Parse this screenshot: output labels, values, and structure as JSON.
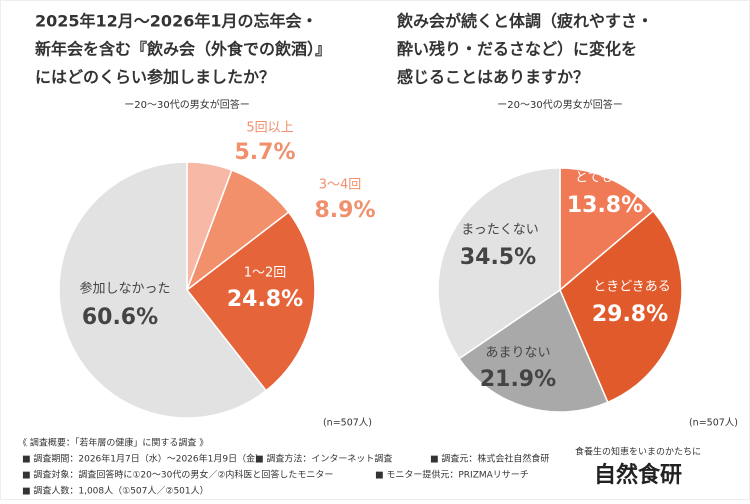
{
  "chart_data": [
    {
      "type": "pie",
      "title_lines": [
        "2025年12月〜2026年1月の忘年会・",
        "新年会を含む『飲み会（外食での飲酒）』",
        "にはどのくらい参加しましたか？"
      ],
      "subtitle": "ー20～30代の男女が回答ー",
      "note": "(n=507人)",
      "categories": [
        "5回以上",
        "3～4回",
        "1～2回",
        "参加しなかった"
      ],
      "values": [
        5.7,
        8.9,
        24.8,
        60.6
      ],
      "value_labels": [
        "5.7%",
        "8.9%",
        "24.8%",
        "60.6%"
      ],
      "colors": [
        "#f7b9a5",
        "#f2906c",
        "#e6643a",
        "#e2e2e2"
      ]
    },
    {
      "type": "pie",
      "title_lines": [
        "飲み会が続くと体調（疲れやすさ・",
        "酔い残り・だるさなど）に変化を",
        "感じることはありますか？"
      ],
      "subtitle": "ー20～30代の男女が回答ー",
      "note": "(n=507人)",
      "categories": [
        "とてもある",
        "ときどきある",
        "あまりない",
        "まったくない"
      ],
      "values": [
        13.8,
        29.8,
        21.9,
        34.5
      ],
      "value_labels": [
        "13.8%",
        "29.8%",
        "21.9%",
        "34.5%"
      ],
      "colors": [
        "#f07a55",
        "#e05a2b",
        "#a9a9a9",
        "#e2e2e2"
      ]
    }
  ],
  "footer": {
    "heading": "《 調査概要：「若年層の健康」に関する調査 》",
    "items": [
      "■ 調査期間：2026年1月7日（水）～2026年1月9日（金）",
      "■ 調査方法：インターネット調査",
      "■ 調査元：株式会社自然食研",
      "■ 調査対象：調査回答時に①20～30代の男女／②内科医と回答したモニター",
      "■ モニター提供元：PRIZMAリサーチ",
      "■ 調査人数：1,008人（①507人／②501人）"
    ]
  },
  "logo": {
    "tagline": "食養生の知恵をいまのかたちに",
    "name": "自然食研"
  }
}
